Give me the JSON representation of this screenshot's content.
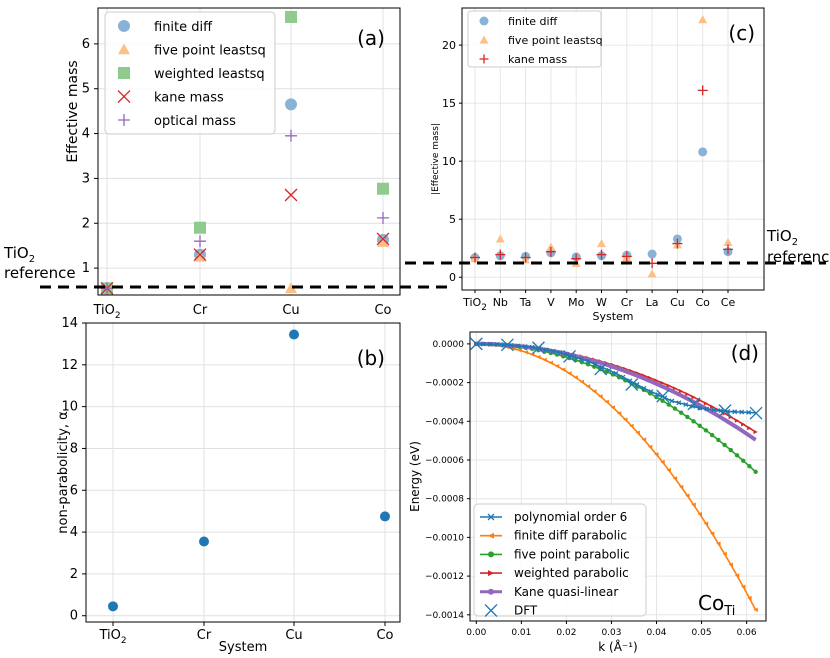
{
  "figure": {
    "ref_label_line1": "TiO",
    "ref_label_line1_sub": "2",
    "ref_label_line2": "reference"
  },
  "chart_data": [
    {
      "panel": "(a)",
      "type": "scatter",
      "ylabel": "Effective mass",
      "xlabel": "",
      "categories": [
        "TiO2",
        "Cr",
        "Cu",
        "Co"
      ],
      "category_labels": [
        {
          "main": "TiO",
          "sub": "2"
        },
        {
          "main": "Cr",
          "sub": ""
        },
        {
          "main": "Cu",
          "sub": ""
        },
        {
          "main": "Co",
          "sub": ""
        }
      ],
      "ylim": [
        0.4,
        6.8
      ],
      "yticks": [
        1,
        2,
        3,
        4,
        5,
        6
      ],
      "legend_position": "top-left",
      "series": [
        {
          "name": "finite diff",
          "marker": "circle",
          "color": "#89b3d6",
          "values": [
            0.55,
            1.3,
            4.65,
            1.63
          ]
        },
        {
          "name": "five point leastsq",
          "marker": "triangle",
          "color": "#fdbf86",
          "values": [
            0.55,
            1.25,
            0.55,
            1.58
          ]
        },
        {
          "name": "weighted leastsq",
          "marker": "square",
          "color": "#8fcb8f",
          "values": [
            0.55,
            1.9,
            6.6,
            2.77
          ]
        },
        {
          "name": "kane mass",
          "marker": "x",
          "color": "#d62728",
          "values": [
            0.55,
            1.3,
            2.63,
            1.65
          ]
        },
        {
          "name": "optical mass",
          "marker": "plus",
          "color": "#9467bd",
          "values": [
            0.55,
            1.6,
            3.95,
            2.12
          ]
        }
      ],
      "reference_value": 0.55
    },
    {
      "panel": "(b)",
      "type": "scatter",
      "ylabel": "non-parabolicity, α",
      "xlabel": "System",
      "categories": [
        "TiO2",
        "Cr",
        "Cu",
        "Co"
      ],
      "category_labels": [
        {
          "main": "TiO",
          "sub": "2"
        },
        {
          "main": "Cr",
          "sub": ""
        },
        {
          "main": "Cu",
          "sub": ""
        },
        {
          "main": "Co",
          "sub": ""
        }
      ],
      "ylim": [
        -0.3,
        14.0
      ],
      "yticks": [
        0,
        2,
        4,
        6,
        8,
        10,
        12,
        14
      ],
      "series": [
        {
          "name": "non-parabolicity",
          "marker": "circle",
          "color": "#1f77b4",
          "values": [
            0.45,
            3.55,
            13.45,
            4.75
          ]
        }
      ]
    },
    {
      "panel": "(c)",
      "type": "scatter",
      "ylabel": "|Effective mass|",
      "xlabel": "System",
      "categories": [
        "TiO2",
        "Nb",
        "Ta",
        "V",
        "Mo",
        "W",
        "Cr",
        "La",
        "Cu",
        "Co",
        "Ce"
      ],
      "category_labels": [
        {
          "main": "TiO",
          "sub": "2"
        },
        {
          "main": "Nb",
          "sub": ""
        },
        {
          "main": "Ta",
          "sub": ""
        },
        {
          "main": "V",
          "sub": ""
        },
        {
          "main": "Mo",
          "sub": ""
        },
        {
          "main": "W",
          "sub": ""
        },
        {
          "main": "Cr",
          "sub": ""
        },
        {
          "main": "La",
          "sub": ""
        },
        {
          "main": "Cu",
          "sub": ""
        },
        {
          "main": "Co",
          "sub": ""
        },
        {
          "main": "Ce",
          "sub": ""
        }
      ],
      "ylim": [
        -1.1,
        23.2
      ],
      "yticks": [
        0,
        5,
        10,
        15,
        20
      ],
      "legend_position": "top-left",
      "series": [
        {
          "name": "finite diff",
          "marker": "circle",
          "color": "#89b3d6",
          "values": [
            1.7,
            1.85,
            1.8,
            2.1,
            1.75,
            1.85,
            1.9,
            2.0,
            3.3,
            10.8,
            2.2
          ]
        },
        {
          "name": "five point leastsq",
          "marker": "triangle",
          "color": "#fdbf86",
          "values": [
            1.6,
            3.3,
            1.5,
            2.6,
            1.2,
            2.9,
            1.7,
            0.3,
            2.8,
            22.2,
            3.0
          ]
        },
        {
          "name": "kane mass",
          "marker": "plus",
          "color": "#d62728",
          "values": [
            1.7,
            1.95,
            1.7,
            2.2,
            1.6,
            1.95,
            1.8,
            1.2,
            2.9,
            16.1,
            2.4
          ]
        }
      ],
      "reference_value": 1.8
    },
    {
      "panel": "(d)",
      "type": "line",
      "ylabel": "Energy (eV)",
      "xlabel": "k (Å⁻¹)",
      "annotation": {
        "main": "Co",
        "sub": "Ti"
      },
      "xlim": [
        -0.0014,
        0.0643
      ],
      "ylim": [
        -0.001432,
        6.14e-05
      ],
      "xticks": [
        0.0,
        0.01,
        0.02,
        0.03,
        0.04,
        0.05,
        0.06
      ],
      "xtick_labels": [
        "0.00",
        "0.01",
        "0.02",
        "0.03",
        "0.04",
        "0.05",
        "0.06"
      ],
      "yticks": [
        0.0,
        -0.0002,
        -0.0004,
        -0.0006,
        -0.0008,
        -0.001,
        -0.0012,
        -0.0014
      ],
      "ytick_labels": [
        "0.0000",
        "−0.0002",
        "−0.0004",
        "−0.0006",
        "−0.0008",
        "−0.0010",
        "−0.0012",
        "−0.0014"
      ],
      "legend_position": "bottom-left",
      "k_max": 0.062,
      "series": [
        {
          "name": "polynomial order 6",
          "marker": "x-small",
          "color": "#1f77b4",
          "x": [
            0,
            0.0062,
            0.0124,
            0.0186,
            0.0248,
            0.031,
            0.0372,
            0.0434,
            0.0496,
            0.0558,
            0.062
          ],
          "y": [
            0,
            -4e-06,
            -1.7e-05,
            -4.5e-05,
            -9e-05,
            -0.000152,
            -0.00023,
            -0.000295,
            -0.000332,
            -0.000349,
            -0.000356
          ]
        },
        {
          "name": "finite diff parabolic",
          "marker": "triangle-left",
          "color": "#ff7f0e",
          "curvature": -0.3575
        },
        {
          "name": "five point parabolic",
          "marker": "dot",
          "color": "#2ca02c",
          "curvature": -0.172
        },
        {
          "name": "weighted parabolic",
          "marker": "triangle-right",
          "color": "#d62728",
          "curvature": -0.1184
        },
        {
          "name": "Kane quasi-linear",
          "marker": "dot-thick",
          "color": "#9467bd",
          "curvature": -0.129
        },
        {
          "name": "DFT",
          "marker": "x-large",
          "color": "#1f77b4",
          "x": [
            0,
            0.0069,
            0.0138,
            0.0207,
            0.0276,
            0.0345,
            0.0414,
            0.0483,
            0.0552,
            0.0621
          ],
          "y": [
            0,
            -5e-06,
            -2e-05,
            -6.5e-05,
            -0.00013,
            -0.00021,
            -0.00027,
            -0.00031,
            -0.000345,
            -0.000358
          ]
        }
      ]
    }
  ]
}
